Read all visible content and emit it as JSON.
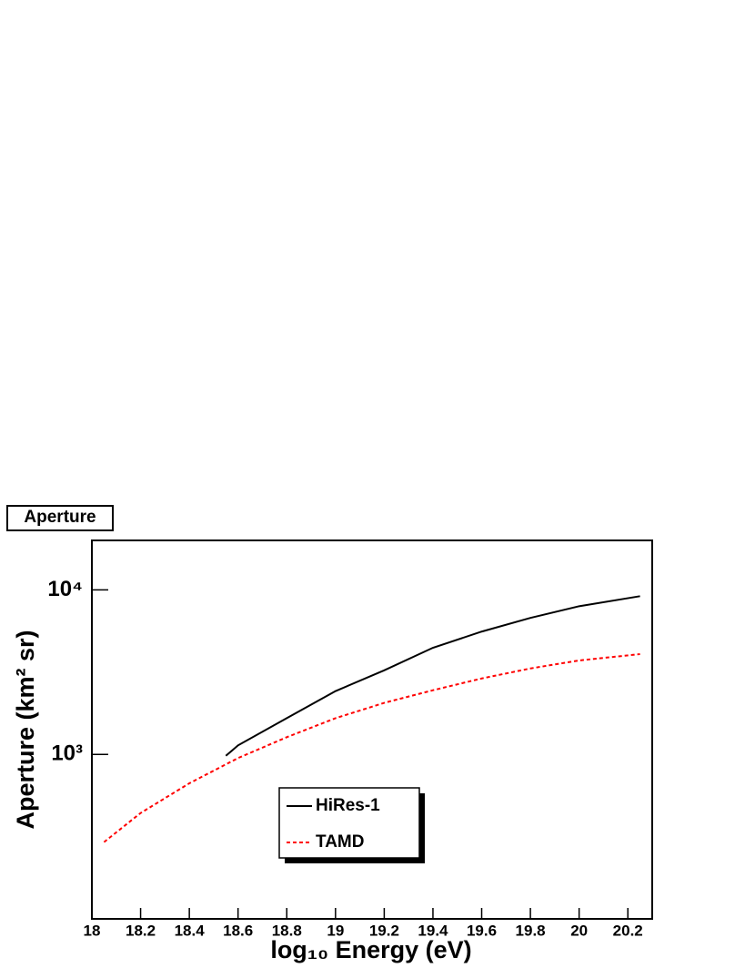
{
  "chart_data": {
    "type": "line",
    "title": "Aperture",
    "x_label": "log₁₀ Energy (eV)",
    "y_label": "Aperture (km² sr)",
    "xlim": [
      18,
      20.3
    ],
    "xticks": [
      18,
      18.2,
      18.4,
      18.6,
      18.8,
      19,
      19.2,
      19.4,
      19.6,
      19.8,
      20,
      20.2
    ],
    "ylim": [
      100,
      20000
    ],
    "yticks": [
      {
        "value": 1000,
        "label": "10³"
      },
      {
        "value": 10000,
        "label": "10⁴"
      }
    ],
    "log_y": true,
    "legend": "lower center",
    "series": [
      {
        "name": "HiRes-1",
        "color": "#000000",
        "dash": "solid",
        "x": [
          18.55,
          18.6,
          18.8,
          19,
          19.2,
          19.4,
          19.6,
          19.8,
          20,
          20.25
        ],
        "values": [
          980,
          1135,
          1660,
          2425,
          3245,
          4450,
          5580,
          6760,
          7960,
          9160
        ]
      },
      {
        "name": "TAMD",
        "color": "#ff0000",
        "dash": "dashed",
        "x": [
          18.05,
          18.2,
          18.4,
          18.6,
          18.8,
          19,
          19.2,
          19.4,
          19.6,
          19.8,
          20,
          20.25
        ],
        "values": [
          293,
          440,
          667,
          950,
          1272,
          1660,
          2057,
          2455,
          2895,
          3330,
          3725,
          4070
        ]
      }
    ]
  }
}
